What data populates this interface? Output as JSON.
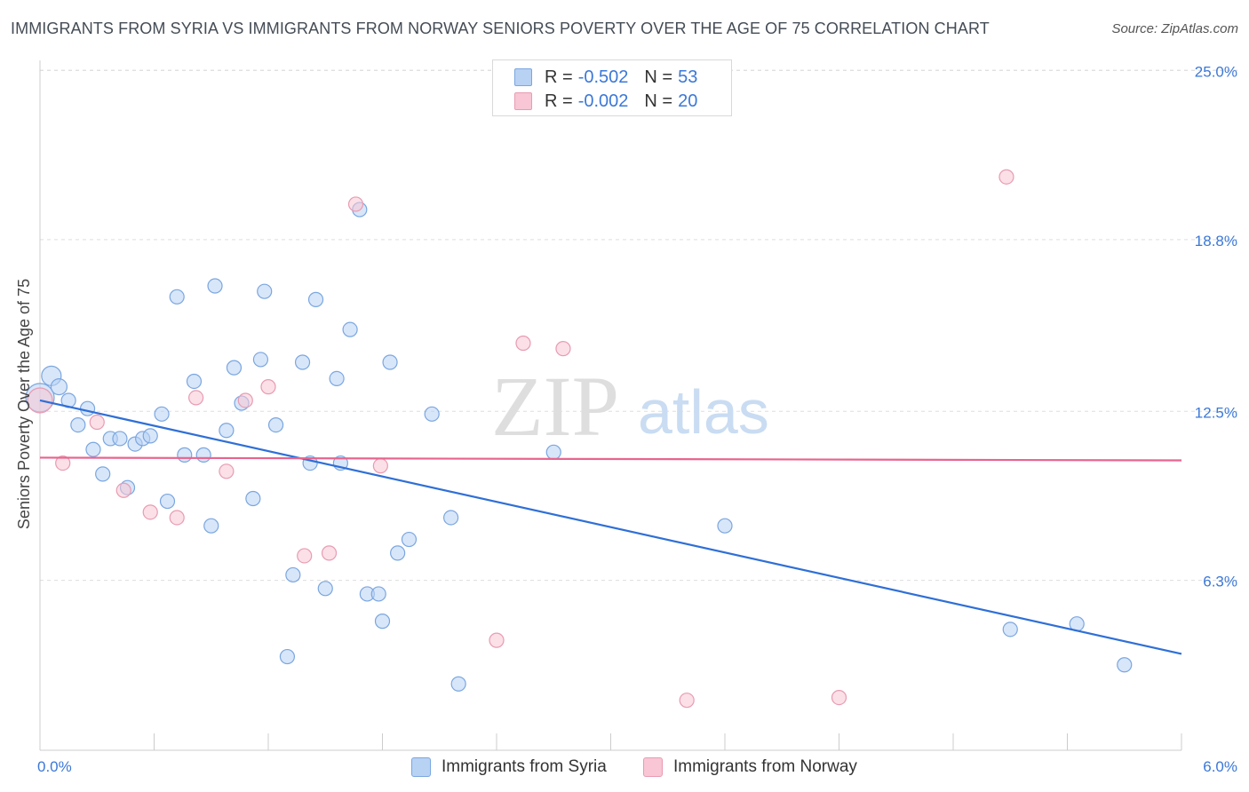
{
  "title": "IMMIGRANTS FROM SYRIA VS IMMIGRANTS FROM NORWAY SENIORS POVERTY OVER THE AGE OF 75 CORRELATION CHART",
  "source": "Source: ZipAtlas.com",
  "watermark": {
    "zip": "ZIP",
    "atlas": "atlas"
  },
  "legend": {
    "series1": {
      "r_label": "R =",
      "r_value": "-0.502",
      "n_label": "N =",
      "n_value": "53"
    },
    "series2": {
      "r_label": "R =",
      "r_value": "-0.002",
      "n_label": "N =",
      "n_value": "20"
    }
  },
  "colors": {
    "syria_fill": "#b8d2f4",
    "syria_stroke": "#7aa6e0",
    "syria_line": "#2f6fd6",
    "norway_fill": "#f8c6d4",
    "norway_stroke": "#e89bb2",
    "norway_line": "#e8648e",
    "axis_text": "#3b78d8"
  },
  "chart_data": {
    "type": "scatter",
    "xlabel": "",
    "ylabel": "Seniors Poverty Over the Age of 75",
    "xlim": [
      0,
      6
    ],
    "ylim": [
      0,
      25.5
    ],
    "x_tick_labels": [
      "0.0%",
      "6.0%"
    ],
    "y_ticks": [
      6.3,
      12.5,
      18.8,
      25.0
    ],
    "y_tick_labels": [
      "6.3%",
      "12.5%",
      "18.8%",
      "25.0%"
    ],
    "series": [
      {
        "name": "Immigrants from Syria",
        "points": [
          [
            0.0,
            13.0,
            16
          ],
          [
            0.06,
            13.8,
            11
          ],
          [
            0.1,
            13.4,
            9
          ],
          [
            0.15,
            12.9,
            8
          ],
          [
            0.2,
            12.0,
            8
          ],
          [
            0.25,
            12.6,
            8
          ],
          [
            0.28,
            11.1,
            8
          ],
          [
            0.33,
            10.2,
            8
          ],
          [
            0.37,
            11.5,
            8
          ],
          [
            0.42,
            11.5,
            8
          ],
          [
            0.46,
            9.7,
            8
          ],
          [
            0.5,
            11.3,
            8
          ],
          [
            0.54,
            11.5,
            8
          ],
          [
            0.58,
            11.6,
            8
          ],
          [
            0.64,
            12.4,
            8
          ],
          [
            0.67,
            9.2,
            8
          ],
          [
            0.72,
            16.7,
            8
          ],
          [
            0.76,
            10.9,
            8
          ],
          [
            0.81,
            13.6,
            8
          ],
          [
            0.86,
            10.9,
            8
          ],
          [
            0.9,
            8.3,
            8
          ],
          [
            0.92,
            17.1,
            8
          ],
          [
            0.98,
            11.8,
            8
          ],
          [
            1.02,
            14.1,
            8
          ],
          [
            1.06,
            12.8,
            8
          ],
          [
            1.12,
            9.3,
            8
          ],
          [
            1.16,
            14.4,
            8
          ],
          [
            1.18,
            16.9,
            8
          ],
          [
            1.24,
            12.0,
            8
          ],
          [
            1.3,
            3.5,
            8
          ],
          [
            1.33,
            6.5,
            8
          ],
          [
            1.38,
            14.3,
            8
          ],
          [
            1.42,
            10.6,
            8
          ],
          [
            1.45,
            16.6,
            8
          ],
          [
            1.5,
            6.0,
            8
          ],
          [
            1.56,
            13.7,
            8
          ],
          [
            1.58,
            10.6,
            8
          ],
          [
            1.63,
            15.5,
            8
          ],
          [
            1.68,
            19.9,
            8
          ],
          [
            1.72,
            5.8,
            8
          ],
          [
            1.78,
            5.8,
            8
          ],
          [
            1.8,
            4.8,
            8
          ],
          [
            1.84,
            14.3,
            8
          ],
          [
            1.88,
            7.3,
            8
          ],
          [
            1.94,
            7.8,
            8
          ],
          [
            2.06,
            12.4,
            8
          ],
          [
            2.16,
            8.6,
            8
          ],
          [
            2.2,
            2.5,
            8
          ],
          [
            2.7,
            11.0,
            8
          ],
          [
            3.6,
            8.3,
            8
          ],
          [
            5.1,
            4.5,
            8
          ],
          [
            5.45,
            4.7,
            8
          ],
          [
            5.7,
            3.2,
            8
          ]
        ]
      },
      {
        "name": "Immigrants from Norway",
        "points": [
          [
            0.0,
            12.9,
            14
          ],
          [
            0.12,
            10.6,
            8
          ],
          [
            0.3,
            12.1,
            8
          ],
          [
            0.44,
            9.6,
            8
          ],
          [
            0.58,
            8.8,
            8
          ],
          [
            0.72,
            8.6,
            8
          ],
          [
            0.82,
            13.0,
            8
          ],
          [
            0.98,
            10.3,
            8
          ],
          [
            1.08,
            12.9,
            8
          ],
          [
            1.2,
            13.4,
            8
          ],
          [
            1.39,
            7.2,
            8
          ],
          [
            1.52,
            7.3,
            8
          ],
          [
            1.66,
            20.1,
            8
          ],
          [
            1.79,
            10.5,
            8
          ],
          [
            2.4,
            4.1,
            8
          ],
          [
            2.54,
            15.0,
            8
          ],
          [
            2.75,
            14.8,
            8
          ],
          [
            3.4,
            1.9,
            8
          ],
          [
            4.2,
            2.0,
            8
          ],
          [
            5.08,
            21.1,
            8
          ]
        ]
      }
    ],
    "trend_lines": [
      {
        "series": "Immigrants from Syria",
        "from": [
          0.0,
          12.9
        ],
        "to": [
          6.0,
          3.6
        ]
      },
      {
        "series": "Immigrants from Norway",
        "from": [
          0.0,
          10.8
        ],
        "to": [
          6.0,
          10.7
        ]
      }
    ]
  },
  "bottom_legend": [
    "Immigrants from Syria",
    "Immigrants from Norway"
  ]
}
